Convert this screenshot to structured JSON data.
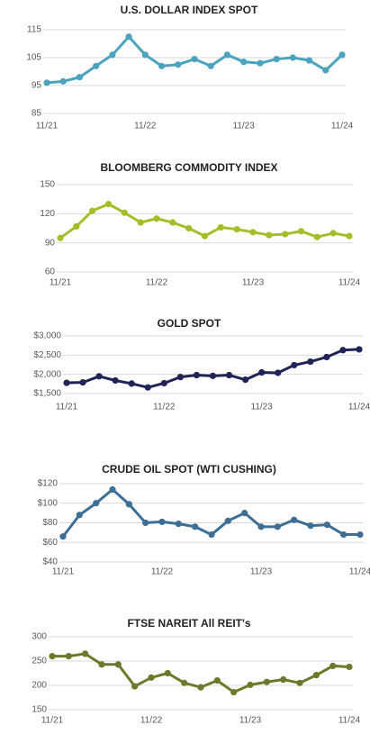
{
  "chart_data": [
    {
      "type": "line",
      "title": "U.S. DOLLAR INDEX SPOT",
      "categories": [
        "11/21",
        null,
        null,
        null,
        null,
        null,
        "11/22",
        null,
        null,
        null,
        null,
        null,
        "11/23",
        null,
        null,
        null,
        null,
        null,
        "11/24"
      ],
      "series": [
        {
          "color": "#4ba3be",
          "values": [
            96,
            96.5,
            98,
            102,
            106,
            112.5,
            106,
            102,
            102.5,
            104.5,
            102,
            106,
            103.5,
            103,
            104.5,
            105,
            104,
            100.5,
            106
          ]
        }
      ],
      "ylim": [
        85,
        115
      ],
      "yticks": [
        85,
        95,
        105,
        115
      ],
      "grid": true
    },
    {
      "type": "line",
      "title": "BLOOMBERG COMMODITY INDEX",
      "categories": [
        "11/21",
        null,
        null,
        null,
        null,
        null,
        "11/22",
        null,
        null,
        null,
        null,
        null,
        "11/23",
        null,
        null,
        null,
        null,
        null,
        "11/24"
      ],
      "series": [
        {
          "color": "#a6bd2a",
          "values": [
            95,
            107,
            123,
            130,
            121,
            111,
            115,
            111,
            105,
            97,
            106,
            104,
            101,
            98,
            99,
            102,
            96,
            100,
            97
          ]
        }
      ],
      "ylim": [
        60,
        150
      ],
      "yticks": [
        60,
        90,
        120,
        150
      ],
      "grid": true
    },
    {
      "type": "line",
      "title": "GOLD SPOT",
      "categories": [
        "11/21",
        null,
        null,
        null,
        null,
        null,
        "11/22",
        null,
        null,
        null,
        null,
        null,
        "11/23",
        null,
        null,
        null,
        null,
        null,
        "11/24"
      ],
      "series": [
        {
          "color": "#1f2356",
          "values": [
            1780,
            1790,
            1950,
            1840,
            1760,
            1660,
            1770,
            1930,
            1980,
            1960,
            1980,
            1860,
            2050,
            2040,
            2240,
            2330,
            2450,
            2630,
            2650
          ]
        }
      ],
      "ylim": [
        1500,
        3000
      ],
      "yticks": [
        {
          "value": 1500,
          "label": "$1,500"
        },
        {
          "value": 2000,
          "label": "$2,000"
        },
        {
          "value": 2500,
          "label": "$2,500"
        },
        {
          "value": 3000,
          "label": "$3,000"
        }
      ],
      "grid": true
    },
    {
      "type": "line",
      "title": "CRUDE OIL SPOT (WTI CUSHING)",
      "categories": [
        "11/21",
        null,
        null,
        null,
        null,
        null,
        "11/22",
        null,
        null,
        null,
        null,
        null,
        "11/23",
        null,
        null,
        null,
        null,
        null,
        "11/24"
      ],
      "series": [
        {
          "color": "#3d6e96",
          "values": [
            66,
            88,
            100,
            114,
            99,
            80,
            81,
            79,
            76,
            68,
            82,
            90,
            76,
            76,
            83,
            77,
            78,
            68,
            68
          ]
        }
      ],
      "ylim": [
        40,
        120
      ],
      "yticks": [
        {
          "value": 40,
          "label": "$40"
        },
        {
          "value": 60,
          "label": "$60"
        },
        {
          "value": 80,
          "label": "$80"
        },
        {
          "value": 100,
          "label": "$100"
        },
        {
          "value": 120,
          "label": "$120"
        }
      ],
      "grid": true
    },
    {
      "type": "line",
      "title": "FTSE NAREIT All REIT's",
      "categories": [
        "11/21",
        null,
        null,
        null,
        null,
        null,
        "11/22",
        null,
        null,
        null,
        null,
        null,
        "11/23",
        null,
        null,
        null,
        null,
        null,
        "11/24"
      ],
      "series": [
        {
          "color": "#6b7a2a",
          "values": [
            260,
            260,
            265,
            243,
            243,
            198,
            216,
            225,
            205,
            196,
            210,
            186,
            201,
            207,
            212,
            205,
            221,
            240,
            238
          ]
        }
      ],
      "ylim": [
        150,
        300
      ],
      "yticks": [
        150,
        200,
        250,
        300
      ],
      "grid": true
    }
  ]
}
